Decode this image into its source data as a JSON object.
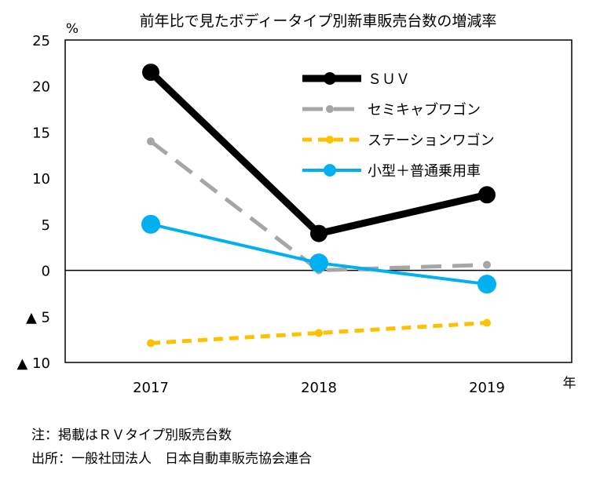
{
  "chart_data": {
    "type": "line",
    "title": "前年比で見たボディータイプ別新車販売台数の増減率",
    "ylabel": "%",
    "xlabel": "年",
    "x": [
      "2017",
      "2018",
      "2019"
    ],
    "ylim": [
      -10,
      25
    ],
    "yticks": [
      25,
      20,
      15,
      10,
      5,
      0,
      -5,
      -10
    ],
    "ytick_labels": [
      "25",
      "20",
      "15",
      "10",
      "5",
      "0",
      "▲ 5",
      "▲ 10"
    ],
    "grid": false,
    "legend_position": "top-right",
    "series": [
      {
        "name": "ＳＵＶ",
        "values": [
          21.5,
          4.0,
          8.2
        ],
        "color": "#000000",
        "style": "solid"
      },
      {
        "name": "セミキャブワゴン",
        "values": [
          14.0,
          0.0,
          0.6
        ],
        "color": "#a6a6a6",
        "style": "longdash"
      },
      {
        "name": "ステーションワゴン",
        "values": [
          -7.9,
          -6.8,
          -5.7
        ],
        "color": "#ffc000",
        "style": "dash"
      },
      {
        "name": "小型＋普通乗用車",
        "values": [
          5.0,
          0.8,
          -1.5
        ],
        "color": "#00b0f0",
        "style": "solid"
      }
    ]
  },
  "notes": {
    "note": "注：掲載はＲＶタイプ別販売台数",
    "source": "出所：一般社団法人　日本自動車販売協会連合"
  }
}
